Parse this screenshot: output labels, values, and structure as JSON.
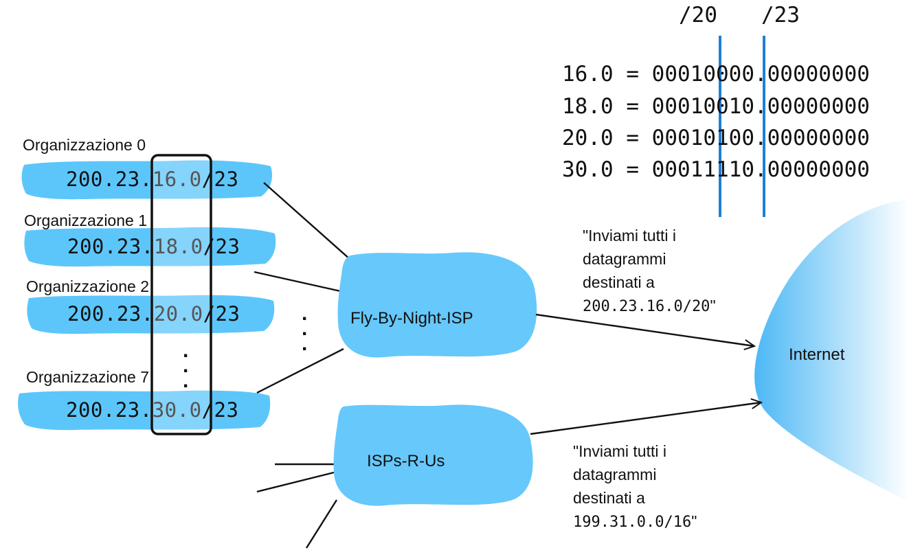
{
  "colors": {
    "brush": "#5cc6fb",
    "cloud": "#66c8fb",
    "highlight_box": "#111111",
    "divider": "#1e7fd6",
    "internet_gradient_start": "#4db8f5",
    "internet_gradient_end": "#ffffff"
  },
  "cidr_marks": [
    "/20",
    "/23"
  ],
  "binary_rows": [
    {
      "decimal": "16.0",
      "eq": "=",
      "binary": "00010000.00000000"
    },
    {
      "decimal": "18.0",
      "eq": "=",
      "binary": "00010010.00000000"
    },
    {
      "decimal": "20.0",
      "eq": "=",
      "binary": "00010100.00000000"
    },
    {
      "decimal": "30.0",
      "eq": "=",
      "binary": "00011110.00000000"
    }
  ],
  "organizations": [
    {
      "label": "Organizzazione 0",
      "prefix_start": "200.23.",
      "prefix_mid": "16.0",
      "prefix_end": "/23"
    },
    {
      "label": "Organizzazione 1",
      "prefix_start": "200.23.",
      "prefix_mid": "18.0",
      "prefix_end": "/23"
    },
    {
      "label": "Organizzazione 2",
      "prefix_start": "200.23.",
      "prefix_mid": "20.0",
      "prefix_end": "/23"
    },
    {
      "label": "Organizzazione 7",
      "prefix_start": "200.23.",
      "prefix_mid": "30.0",
      "prefix_end": "/23"
    }
  ],
  "isps": [
    {
      "name": "Fly-By-Night-ISP"
    },
    {
      "name": "ISPs-R-Us"
    }
  ],
  "internet_label": "Internet",
  "announcements": [
    {
      "lines": [
        "\"Inviami tutti i",
        "datagrammi",
        "destinati a"
      ],
      "address": "200.23.16.0/20",
      "closing": "\""
    },
    {
      "lines": [
        "\"Inviami tutti i",
        "datagrammi",
        "destinati a"
      ],
      "address": "199.31.0.0/16",
      "closing": "\""
    }
  ],
  "ellipsis_glyph": "."
}
